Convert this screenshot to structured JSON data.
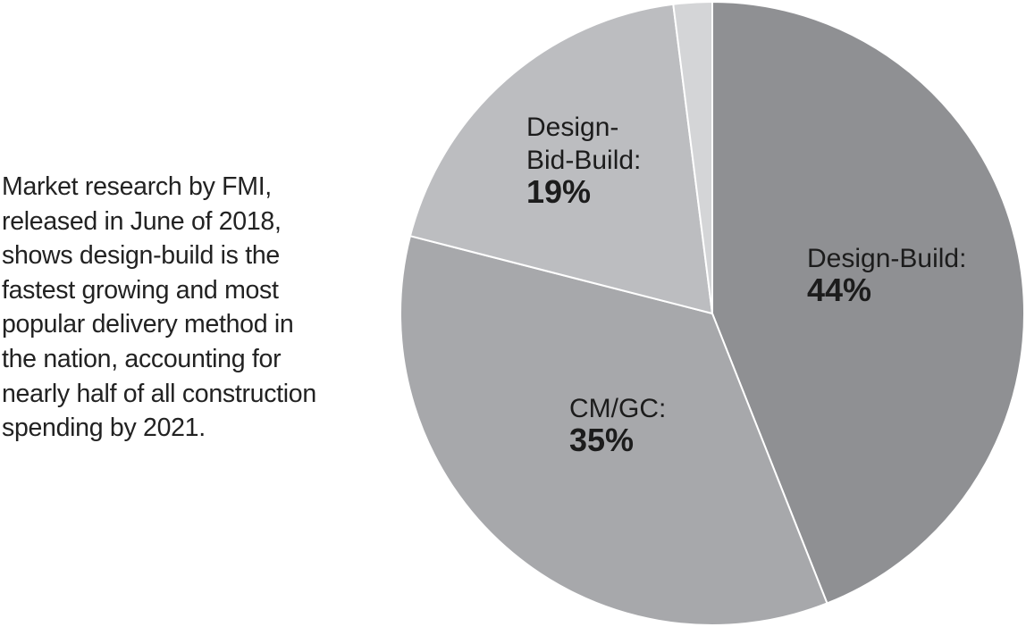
{
  "caption": {
    "lines": [
      "Market research by FMI,",
      "released in June of 2018,",
      "shows design-build is the",
      "fastest growing and most",
      "popular delivery method in",
      "the nation, accounting for",
      "nearly half of all construction",
      "spending by 2021."
    ]
  },
  "chart_data": {
    "type": "pie",
    "title": "",
    "start_angle_deg": 0,
    "direction": "clockwise",
    "slices": [
      {
        "key": "design-build",
        "label_lines": [
          "Design-Build:"
        ],
        "value": 44,
        "value_label": "44%",
        "color": "#8f9093"
      },
      {
        "key": "cm-gc",
        "label_lines": [
          "CM/GC:"
        ],
        "value": 35,
        "value_label": "35%",
        "color": "#a7a8ab"
      },
      {
        "key": "design-bid-build",
        "label_lines": [
          "Design-",
          "Bid-Build:"
        ],
        "value": 19,
        "value_label": "19%",
        "color": "#bcbdc0"
      },
      {
        "key": "other",
        "label_lines": [],
        "value": 2,
        "value_label": "",
        "color": "#d4d5d7"
      }
    ]
  }
}
